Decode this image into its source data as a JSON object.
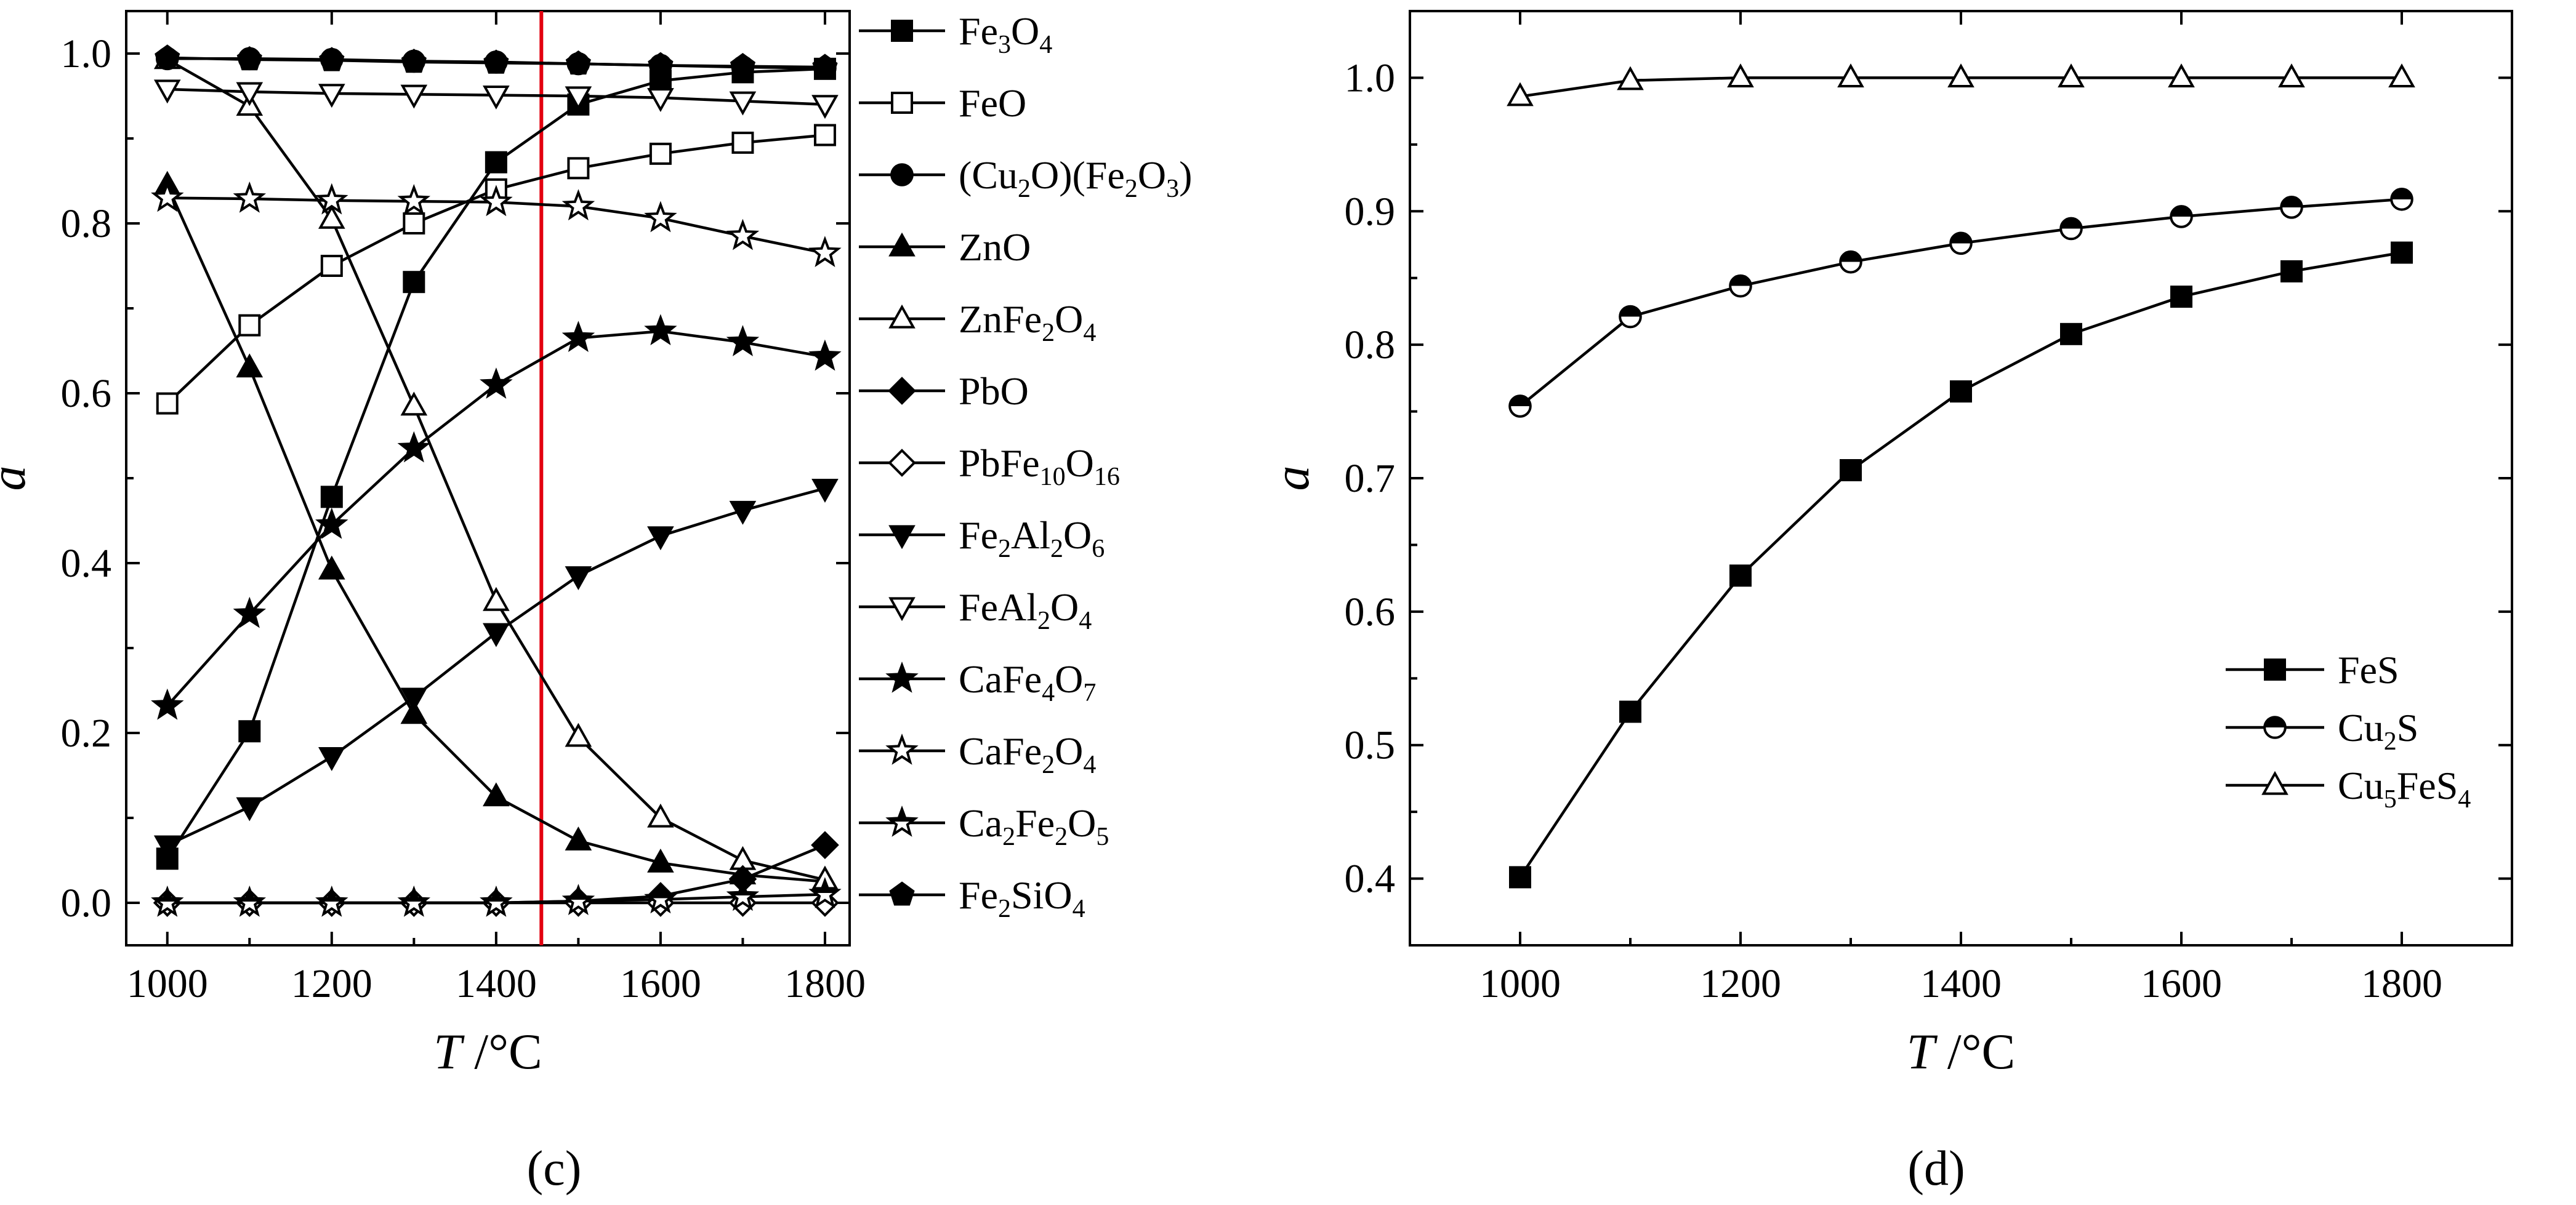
{
  "figure": {
    "panel_c_label": "(c)",
    "panel_d_label": "(d)"
  },
  "chart_data": [
    {
      "type": "line",
      "panel": "c",
      "xlabel": "T /°C",
      "ylabel": "a",
      "xlim": [
        950,
        1830
      ],
      "ylim": [
        -0.05,
        1.05
      ],
      "xticks": [
        1000,
        1200,
        1400,
        1600,
        1800
      ],
      "yticks": [
        0.0,
        0.2,
        0.4,
        0.6,
        0.8,
        1.0
      ],
      "xtick_labels": [
        "1000",
        "1200",
        "1400",
        "1600",
        "1800"
      ],
      "ytick_labels": [
        "0.0",
        "0.2",
        "0.4",
        "0.6",
        "0.8",
        "1.0"
      ],
      "legend_position": "right, outside plot",
      "reference_line": {
        "x": 1455,
        "color": "#e3000f"
      },
      "x": [
        1000,
        1100,
        1200,
        1300,
        1400,
        1500,
        1600,
        1700,
        1800
      ],
      "series": [
        {
          "name": "Fe3O4",
          "label_parts": [
            [
              "Fe",
              ""
            ],
            [
              "3",
              "sub"
            ],
            [
              "O",
              ""
            ],
            [
              "4",
              "sub"
            ]
          ],
          "marker": "square",
          "filled": true,
          "values": [
            0.052,
            0.202,
            0.478,
            0.731,
            0.872,
            0.94,
            0.968,
            0.978,
            0.982
          ]
        },
        {
          "name": "FeO",
          "label_parts": [
            [
              "FeO",
              ""
            ]
          ],
          "marker": "square",
          "filled": false,
          "values": [
            0.588,
            0.68,
            0.75,
            0.8,
            0.84,
            0.865,
            0.882,
            0.895,
            0.904
          ]
        },
        {
          "name": "(Cu2O)(Fe2O3)",
          "label_parts": [
            [
              "(Cu",
              ""
            ],
            [
              "2",
              "sub"
            ],
            [
              "O)(Fe",
              ""
            ],
            [
              "2",
              "sub"
            ],
            [
              "O",
              ""
            ],
            [
              "3",
              "sub"
            ],
            [
              ")",
              ""
            ]
          ],
          "marker": "circle",
          "filled": true,
          "values": [
            0.994,
            0.994,
            0.993,
            0.991,
            0.99,
            0.988,
            0.986,
            0.984,
            0.983
          ]
        },
        {
          "name": "ZnO",
          "label_parts": [
            [
              "ZnO",
              ""
            ]
          ],
          "marker": "triangle",
          "filled": true,
          "values": [
            0.845,
            0.63,
            0.392,
            0.222,
            0.125,
            0.073,
            0.047,
            0.033,
            0.025
          ]
        },
        {
          "name": "ZnFe2O4",
          "label_parts": [
            [
              "ZnFe",
              ""
            ],
            [
              "2",
              "sub"
            ],
            [
              "O",
              ""
            ],
            [
              "4",
              "sub"
            ]
          ],
          "marker": "triangle",
          "filled": false,
          "values": [
            0.993,
            0.938,
            0.805,
            0.585,
            0.355,
            0.195,
            0.1,
            0.05,
            0.027
          ]
        },
        {
          "name": "PbO",
          "label_parts": [
            [
              "PbO",
              ""
            ]
          ],
          "marker": "diamond",
          "filled": true,
          "values": [
            0.0,
            0.0,
            0.0,
            0.0,
            0.0,
            0.002,
            0.008,
            0.028,
            0.068
          ]
        },
        {
          "name": "PbFe10O16",
          "label_parts": [
            [
              "PbFe",
              ""
            ],
            [
              "10",
              "sub"
            ],
            [
              "O",
              ""
            ],
            [
              "16",
              "sub"
            ]
          ],
          "marker": "diamond",
          "filled": false,
          "values": [
            0.0,
            0.0,
            0.0,
            0.0,
            0.0,
            0.0,
            0.0,
            0.0,
            0.0
          ]
        },
        {
          "name": "Fe2Al2O6",
          "label_parts": [
            [
              "Fe",
              ""
            ],
            [
              "2",
              "sub"
            ],
            [
              "Al",
              ""
            ],
            [
              "2",
              "sub"
            ],
            [
              "O",
              ""
            ],
            [
              "6",
              "sub"
            ]
          ],
          "marker": "triangle-down",
          "filled": true,
          "values": [
            0.068,
            0.113,
            0.172,
            0.242,
            0.318,
            0.385,
            0.432,
            0.462,
            0.488
          ]
        },
        {
          "name": "FeAl2O4",
          "label_parts": [
            [
              "FeAl",
              ""
            ],
            [
              "2",
              "sub"
            ],
            [
              "O",
              ""
            ],
            [
              "4",
              "sub"
            ]
          ],
          "marker": "triangle-down",
          "filled": false,
          "values": [
            0.958,
            0.955,
            0.953,
            0.952,
            0.951,
            0.95,
            0.948,
            0.944,
            0.94
          ]
        },
        {
          "name": "CaFe4O7",
          "label_parts": [
            [
              "CaFe",
              ""
            ],
            [
              "4",
              "sub"
            ],
            [
              "O",
              ""
            ],
            [
              "7",
              "sub"
            ]
          ],
          "marker": "star",
          "filled": true,
          "values": [
            0.232,
            0.34,
            0.445,
            0.535,
            0.61,
            0.665,
            0.673,
            0.66,
            0.643
          ]
        },
        {
          "name": "CaFe2O4",
          "label_parts": [
            [
              "CaFe",
              ""
            ],
            [
              "2",
              "sub"
            ],
            [
              "O",
              ""
            ],
            [
              "4",
              "sub"
            ]
          ],
          "marker": "star",
          "filled": false,
          "values": [
            0.83,
            0.829,
            0.827,
            0.826,
            0.825,
            0.82,
            0.806,
            0.785,
            0.765
          ]
        },
        {
          "name": "Ca2Fe2O5",
          "label_parts": [
            [
              "Ca",
              ""
            ],
            [
              "2",
              "sub"
            ],
            [
              "Fe",
              ""
            ],
            [
              "2",
              "sub"
            ],
            [
              "O",
              ""
            ],
            [
              "5",
              "sub"
            ]
          ],
          "marker": "star",
          "filled": "half",
          "values": [
            0.0,
            0.0,
            0.0,
            0.0,
            0.0,
            0.002,
            0.004,
            0.007,
            0.01
          ]
        },
        {
          "name": "Fe2SiO4",
          "label_parts": [
            [
              "Fe",
              ""
            ],
            [
              "2",
              "sub"
            ],
            [
              "SiO",
              ""
            ],
            [
              "4",
              "sub"
            ]
          ],
          "marker": "pentagon",
          "filled": true,
          "values": [
            0.995,
            0.993,
            0.992,
            0.99,
            0.989,
            0.988,
            0.986,
            0.985,
            0.984
          ]
        }
      ]
    },
    {
      "type": "line",
      "panel": "d",
      "xlabel": "T /°C",
      "ylabel": "a",
      "xlim": [
        900,
        1900
      ],
      "ylim": [
        0.35,
        1.05
      ],
      "xticks": [
        1000,
        1200,
        1400,
        1600,
        1800
      ],
      "yticks": [
        0.4,
        0.5,
        0.6,
        0.7,
        0.8,
        0.9,
        1.0
      ],
      "xtick_labels": [
        "1000",
        "1200",
        "1400",
        "1600",
        "1800"
      ],
      "ytick_labels": [
        "0.4",
        "0.5",
        "0.6",
        "0.7",
        "0.8",
        "0.9",
        "1.0"
      ],
      "legend_position": "lower-right, inside plot",
      "x": [
        1000,
        1100,
        1200,
        1300,
        1400,
        1500,
        1600,
        1700,
        1800
      ],
      "series": [
        {
          "name": "FeS",
          "label_parts": [
            [
              "FeS",
              ""
            ]
          ],
          "marker": "square",
          "filled": true,
          "values": [
            0.401,
            0.525,
            0.627,
            0.706,
            0.765,
            0.808,
            0.836,
            0.855,
            0.869
          ]
        },
        {
          "name": "Cu2S",
          "label_parts": [
            [
              "Cu",
              ""
            ],
            [
              "2",
              "sub"
            ],
            [
              "S",
              ""
            ]
          ],
          "marker": "circle",
          "filled": "half",
          "values": [
            0.754,
            0.821,
            0.844,
            0.862,
            0.876,
            0.887,
            0.896,
            0.903,
            0.909
          ]
        },
        {
          "name": "Cu5FeS4",
          "label_parts": [
            [
              "Cu",
              ""
            ],
            [
              "5",
              "sub"
            ],
            [
              "FeS",
              ""
            ],
            [
              "4",
              "sub"
            ]
          ],
          "marker": "triangle",
          "filled": false,
          "values": [
            0.986,
            0.998,
            1.0,
            1.0,
            1.0,
            1.0,
            1.0,
            1.0,
            1.0
          ]
        }
      ]
    }
  ]
}
